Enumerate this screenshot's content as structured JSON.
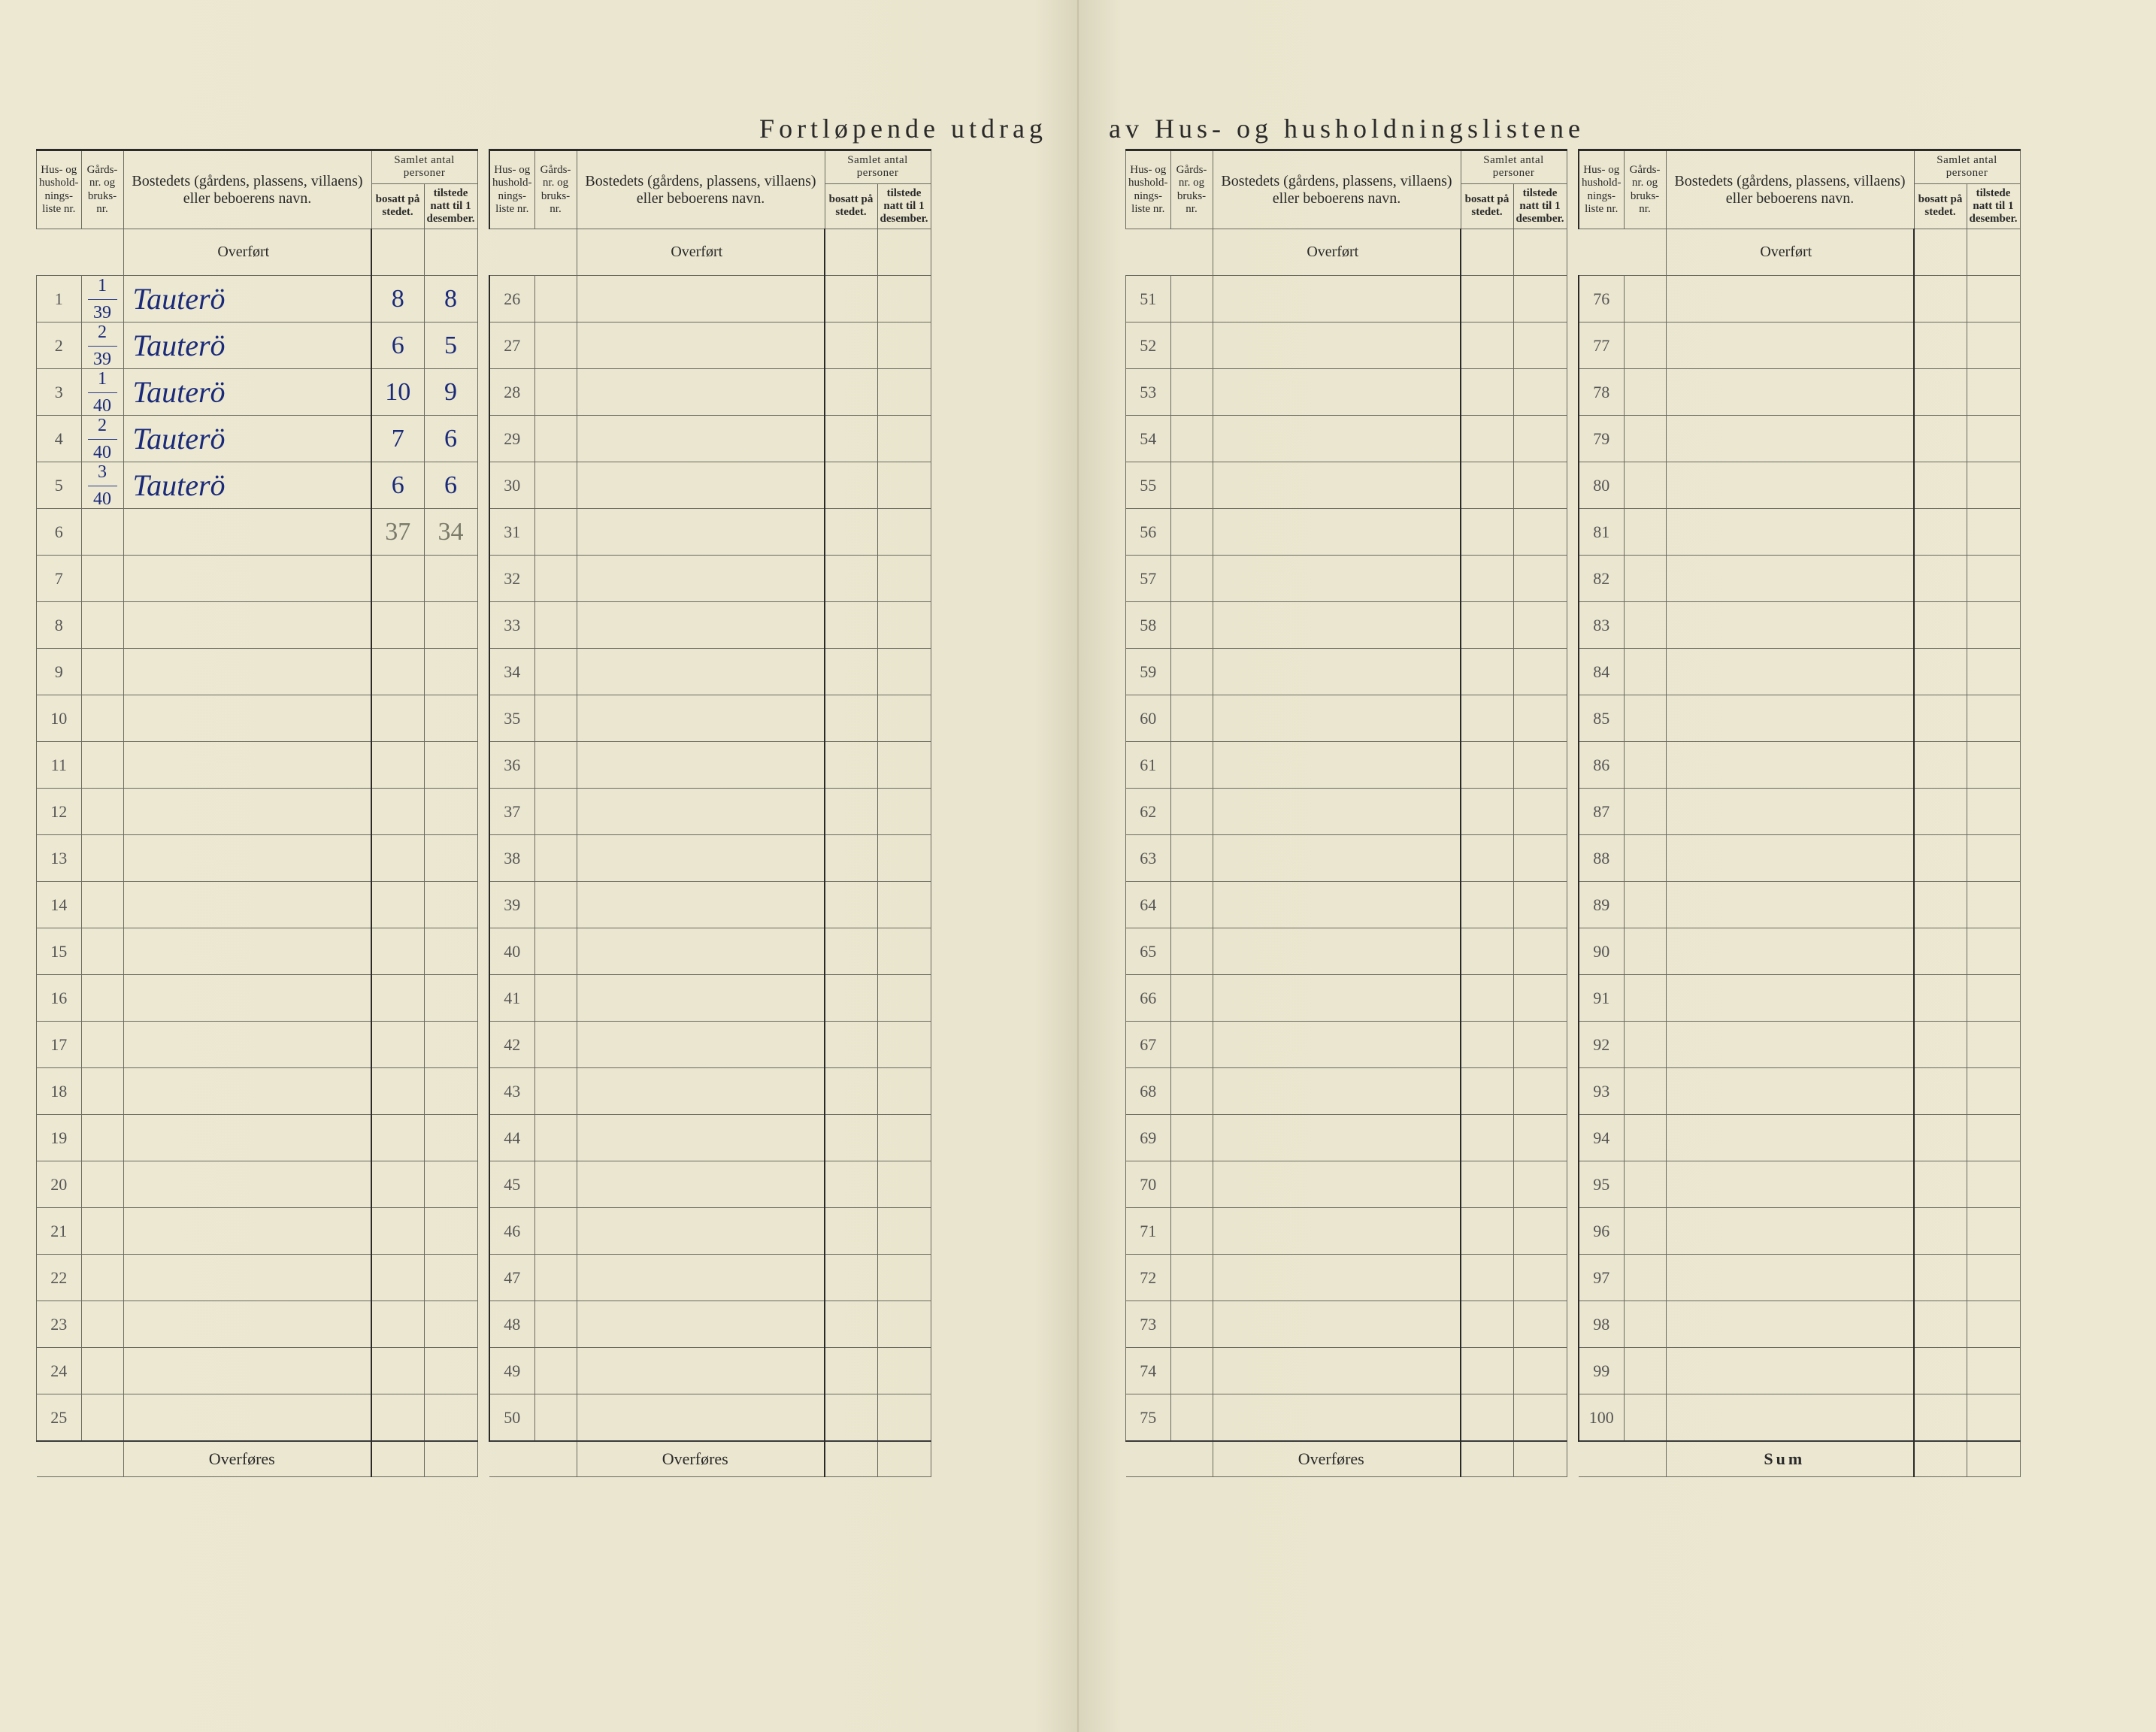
{
  "title_left": "Fortløpende utdrag",
  "title_right": "av Hus- og husholdningslistene",
  "headers": {
    "liste": "Hus- og hushold-nings-liste nr.",
    "gards": "Gårds-nr. og bruks-nr.",
    "navn": "Bostedets (gårdens, plassens, villaens) eller beboerens navn.",
    "samlet": "Samlet antal personer",
    "bosatt": "bosatt på stedet.",
    "tilstede": "tilstede natt til 1 desember."
  },
  "overfort": "Overført",
  "overfores": "Overføres",
  "sum": "Sum",
  "rows": [
    {
      "n": "1",
      "g_top": "39",
      "g_bot": "1",
      "navn": "Tauterö",
      "bosatt": "8",
      "tilstede": "8"
    },
    {
      "n": "2",
      "g_top": "39",
      "g_bot": "2",
      "navn": "Tauterö",
      "bosatt": "6",
      "tilstede": "5"
    },
    {
      "n": "3",
      "g_top": "40",
      "g_bot": "1",
      "navn": "Tauterö",
      "bosatt": "10",
      "tilstede": "9"
    },
    {
      "n": "4",
      "g_top": "40",
      "g_bot": "2",
      "navn": "Tauterö",
      "bosatt": "7",
      "tilstede": "6"
    },
    {
      "n": "5",
      "g_top": "40",
      "g_bot": "3",
      "navn": "Tauterö",
      "bosatt": "6",
      "tilstede": "6"
    }
  ],
  "subtotal": {
    "bosatt": "37",
    "tilstede": "34"
  },
  "colors": {
    "paper": "#ece8d2",
    "ink": "#2a2a2a",
    "handwriting": "#1a2a7a",
    "pencil": "#7a7a6a",
    "rule": "#6a6a60"
  }
}
